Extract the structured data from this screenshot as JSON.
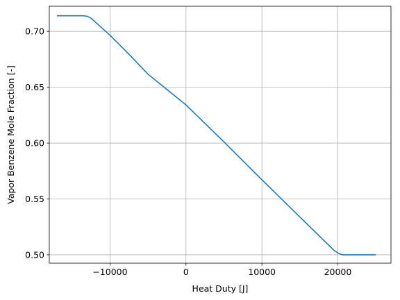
{
  "chart_data": {
    "type": "line",
    "title": "",
    "xlabel": "Heat Duty [J]",
    "ylabel": "Vapor Benzene Mole Fraction [-]",
    "xlim": [
      -18000,
      27000
    ],
    "ylim": [
      0.4925,
      0.7225
    ],
    "xticks": [
      {
        "value": -10000,
        "label": "−10000"
      },
      {
        "value": 0,
        "label": "0"
      },
      {
        "value": 10000,
        "label": "10000"
      },
      {
        "value": 20000,
        "label": "20000"
      }
    ],
    "yticks": [
      {
        "value": 0.5,
        "label": "0.50"
      },
      {
        "value": 0.55,
        "label": "0.55"
      },
      {
        "value": 0.6,
        "label": "0.60"
      },
      {
        "value": 0.65,
        "label": "0.65"
      },
      {
        "value": 0.7,
        "label": "0.70"
      }
    ],
    "grid": true,
    "series": [
      {
        "color": "#1f77b4",
        "x": [
          -17000,
          -13500,
          -13000,
          -12500,
          -10000,
          -7500,
          -5000,
          0,
          5000,
          10000,
          15000,
          19500,
          20000,
          20600,
          21000,
          25000
        ],
        "y": [
          0.714,
          0.714,
          0.7135,
          0.7118,
          0.6965,
          0.6795,
          0.6617,
          0.6342,
          0.6011,
          0.5672,
          0.5339,
          0.504,
          0.5017,
          0.5,
          0.5,
          0.5
        ]
      }
    ]
  }
}
